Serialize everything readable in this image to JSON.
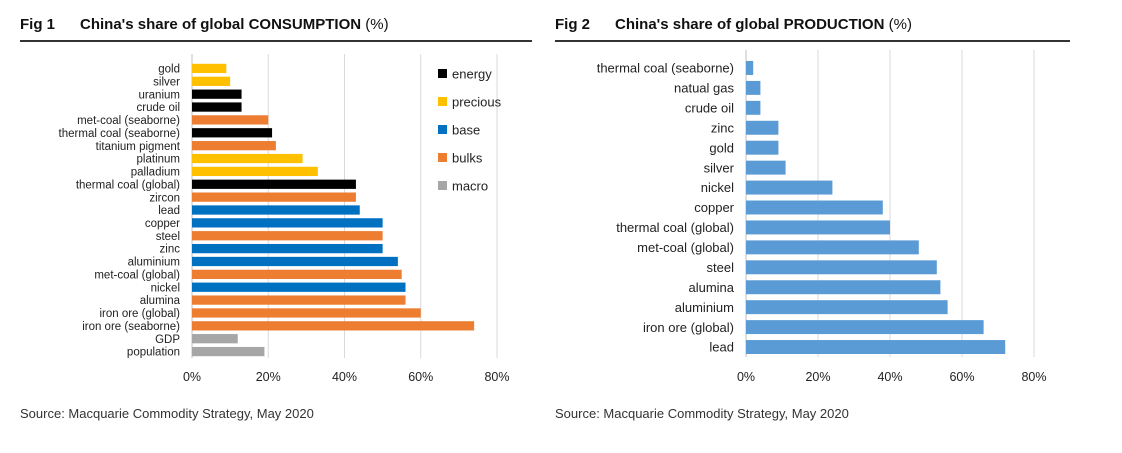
{
  "chart_data": [
    {
      "type": "bar",
      "orientation": "horizontal",
      "fig_num": "Fig 1",
      "title_main": "China's share of global CONSUMPTION",
      "title_unit": "(%)",
      "source": "Source: Macquarie Commodity Strategy, May 2020",
      "xlim": [
        0,
        80
      ],
      "xticks": [
        "0%",
        "20%",
        "40%",
        "60%",
        "80%"
      ],
      "grid": true,
      "legend_position": "top-right",
      "legend": [
        {
          "name": "energy",
          "color": "#000000"
        },
        {
          "name": "precious",
          "color": "#FFC000"
        },
        {
          "name": "base",
          "color": "#0070C0"
        },
        {
          "name": "bulks",
          "color": "#ED7D31"
        },
        {
          "name": "macro",
          "color": "#A6A6A6"
        }
      ],
      "categories": [
        "gold",
        "silver",
        "uranium",
        "crude oil",
        "met-coal (seaborne)",
        "thermal coal (seaborne)",
        "titanium pigment",
        "platinum",
        "palladium",
        "thermal coal (global)",
        "zircon",
        "lead",
        "copper",
        "steel",
        "zinc",
        "aluminium",
        "met-coal (global)",
        "nickel",
        "alumina",
        "iron ore (global)",
        "iron ore (seaborne)",
        "GDP",
        "population"
      ],
      "groups": [
        "precious",
        "precious",
        "energy",
        "energy",
        "bulks",
        "energy",
        "bulks",
        "precious",
        "precious",
        "energy",
        "bulks",
        "base",
        "base",
        "bulks",
        "base",
        "base",
        "bulks",
        "base",
        "bulks",
        "bulks",
        "bulks",
        "macro",
        "macro"
      ],
      "values": [
        9,
        10,
        13,
        13,
        20,
        21,
        22,
        29,
        33,
        43,
        43,
        44,
        50,
        50,
        50,
        54,
        55,
        56,
        56,
        60,
        74,
        12,
        19
      ]
    },
    {
      "type": "bar",
      "orientation": "horizontal",
      "fig_num": "Fig 2",
      "title_main": "China's share of global PRODUCTION",
      "title_unit": "(%)",
      "source": "Source: Macquarie Commodity Strategy, May 2020",
      "xlim": [
        0,
        80
      ],
      "xticks": [
        "0%",
        "20%",
        "40%",
        "60%",
        "80%"
      ],
      "grid": true,
      "bar_color": "#5B9BD5",
      "categories": [
        "thermal coal (seaborne)",
        "natual gas",
        "crude oil",
        "zinc",
        "gold",
        "silver",
        "nickel",
        "copper",
        "thermal coal (global)",
        "met-coal (global)",
        "steel",
        "alumina",
        "aluminium",
        "iron ore (global)",
        "lead"
      ],
      "values": [
        2,
        4,
        4,
        9,
        9,
        11,
        24,
        38,
        40,
        48,
        53,
        54,
        56,
        66,
        72
      ]
    }
  ]
}
